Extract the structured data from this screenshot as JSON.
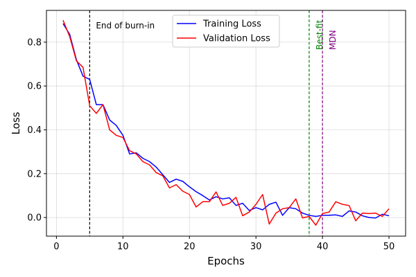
{
  "chart_data": {
    "type": "line",
    "title": "",
    "xlabel": "Epochs",
    "ylabel": "Loss",
    "xlim": [
      -1.5,
      52.5
    ],
    "ylim": [
      -0.085,
      0.945
    ],
    "xticks": [
      0,
      10,
      20,
      30,
      40,
      50
    ],
    "yticks": [
      0.0,
      0.2,
      0.4,
      0.6,
      0.8
    ],
    "ytick_labels": [
      "0.0",
      "0.2",
      "0.4",
      "0.6",
      "0.8"
    ],
    "grid": true,
    "legend": "top-center",
    "x": [
      1,
      2,
      3,
      4,
      5,
      6,
      7,
      8,
      9,
      10,
      11,
      12,
      13,
      14,
      15,
      16,
      17,
      18,
      19,
      20,
      21,
      22,
      23,
      24,
      25,
      26,
      27,
      28,
      29,
      30,
      31,
      32,
      33,
      34,
      35,
      36,
      37,
      38,
      39,
      40,
      41,
      42,
      43,
      44,
      45,
      46,
      47,
      48,
      49,
      50
    ],
    "series": [
      {
        "name": "Training Loss",
        "color": "#0000ff",
        "values": [
          0.885,
          0.835,
          0.72,
          0.645,
          0.63,
          0.515,
          0.515,
          0.445,
          0.42,
          0.375,
          0.29,
          0.295,
          0.27,
          0.255,
          0.23,
          0.195,
          0.16,
          0.175,
          0.165,
          0.14,
          0.118,
          0.1,
          0.08,
          0.095,
          0.085,
          0.09,
          0.055,
          0.065,
          0.032,
          0.045,
          0.035,
          0.06,
          0.07,
          0.01,
          0.045,
          0.04,
          0.02,
          0.01,
          0.005,
          0.01,
          0.01,
          0.012,
          0.005,
          0.03,
          0.025,
          0.008,
          0.0,
          -0.002,
          0.015,
          0.008
        ]
      },
      {
        "name": "Validation Loss",
        "color": "#ff0000",
        "values": [
          0.9,
          0.825,
          0.715,
          0.685,
          0.51,
          0.475,
          0.515,
          0.4,
          0.375,
          0.365,
          0.305,
          0.29,
          0.255,
          0.24,
          0.205,
          0.19,
          0.135,
          0.15,
          0.12,
          0.105,
          0.048,
          0.072,
          0.072,
          0.117,
          0.055,
          0.065,
          0.092,
          0.008,
          0.025,
          0.06,
          0.105,
          -0.03,
          0.02,
          0.04,
          0.045,
          0.085,
          -0.002,
          0.005,
          -0.035,
          0.018,
          0.025,
          0.072,
          0.06,
          0.055,
          -0.015,
          0.02,
          0.018,
          0.02,
          0.005,
          0.04
        ]
      }
    ],
    "vlines": [
      {
        "x": 5,
        "color": "#000000",
        "label": "End of burn-in"
      },
      {
        "x": 38,
        "color": "#008000",
        "label": "Best-fit"
      },
      {
        "x": 40,
        "color": "#800080",
        "label": "MDN"
      }
    ]
  }
}
